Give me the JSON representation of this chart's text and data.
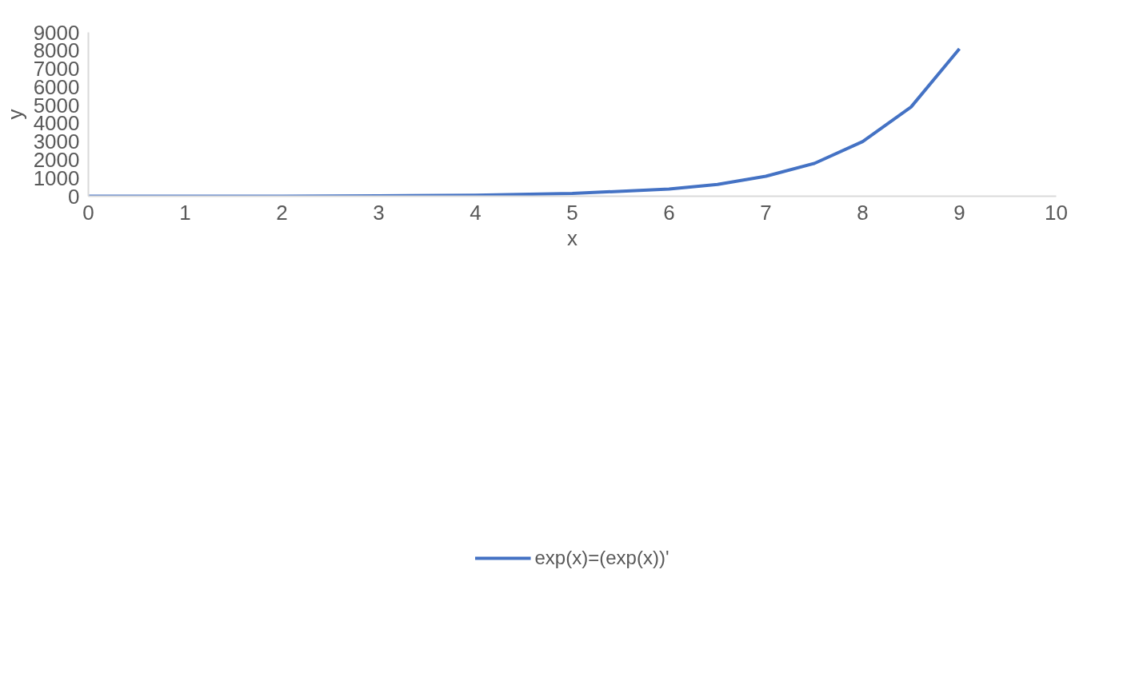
{
  "chart_data": {
    "type": "line",
    "xlabel": "x",
    "ylabel": "y",
    "x": [
      0,
      1,
      2,
      3,
      4,
      5,
      6,
      6.5,
      7,
      7.5,
      8,
      8.5,
      9
    ],
    "series": [
      {
        "name": "exp(x)=(exp(x))'",
        "color": "#4472c4",
        "values": [
          0,
          0,
          0,
          20,
          50,
          150,
          400,
          650,
          1100,
          1800,
          3000,
          4900,
          8100
        ]
      }
    ],
    "xlim": [
      0,
      10
    ],
    "xticks": [
      0,
      1,
      2,
      3,
      4,
      5,
      6,
      7,
      8,
      9,
      10
    ],
    "ylim": [
      0,
      9000
    ],
    "yticks": [
      0,
      1000,
      2000,
      3000,
      4000,
      5000,
      6000,
      7000,
      8000,
      9000
    ],
    "grid": false,
    "legend": "bottom",
    "marker": "none",
    "line_style": "solid"
  }
}
